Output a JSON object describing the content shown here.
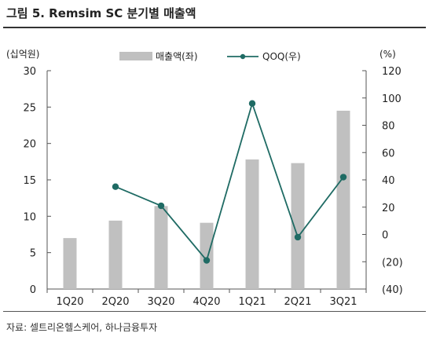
{
  "figure_title": "그림 5. Remsim SC 분기별 매출액",
  "source_note": "자료: 셀트리온헬스케어, 하나금융투자",
  "colors": {
    "bar": "#c0c0c0",
    "line": "#1f6b64",
    "axis": "#555555",
    "text": "#222222"
  },
  "chart_data": {
    "type": "bar",
    "categories": [
      "1Q20",
      "2Q20",
      "3Q20",
      "4Q20",
      "1Q21",
      "2Q21",
      "3Q21"
    ],
    "series": [
      {
        "name": "매출액(좌)",
        "type": "bar",
        "axis": "left",
        "values": [
          7.0,
          9.4,
          11.4,
          9.1,
          17.8,
          17.3,
          24.5
        ]
      },
      {
        "name": "QOQ(우)",
        "type": "line",
        "axis": "right",
        "values": [
          null,
          35,
          21,
          -19,
          96,
          -2,
          42
        ]
      }
    ],
    "left_axis": {
      "unit_label": "(십억원)",
      "ylim": [
        0,
        30
      ],
      "ticks": [
        "0",
        "5",
        "10",
        "15",
        "20",
        "25",
        "30"
      ]
    },
    "right_axis": {
      "unit_label": "(%)",
      "ylim": [
        -40,
        120
      ],
      "ticks": [
        "(40)",
        "(20)",
        "0",
        "20",
        "40",
        "60",
        "80",
        "100",
        "120"
      ]
    },
    "legend_position": "top-center",
    "grid": false
  }
}
